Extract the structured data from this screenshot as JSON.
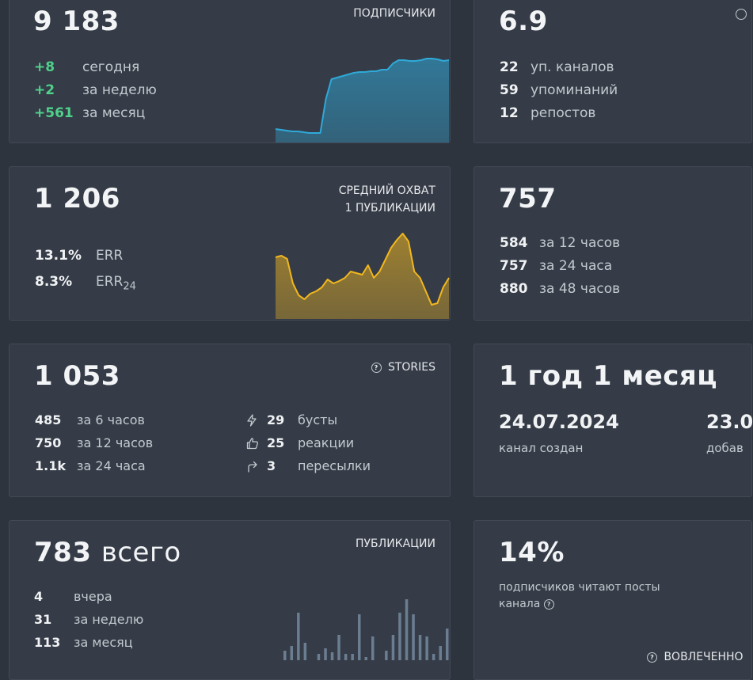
{
  "subscribers": {
    "value": "9 183",
    "caption": "ПОДПИСЧИКИ",
    "stats": [
      {
        "value": "+8",
        "label": "сегодня"
      },
      {
        "value": "+2",
        "label": "за неделю"
      },
      {
        "value": "+561",
        "label": "за месяц"
      }
    ],
    "color": "#2fa9d9"
  },
  "mentions": {
    "value": "6.9",
    "stats": [
      {
        "value": "22",
        "label": "уп. каналов"
      },
      {
        "value": "59",
        "label": "упоминаний"
      },
      {
        "value": "12",
        "label": "репостов"
      }
    ]
  },
  "reach": {
    "value": "1 206",
    "caption_line1": "СРЕДНИЙ ОХВАТ",
    "caption_line2": "1 ПУБЛИКАЦИИ",
    "err": {
      "value": "13.1%",
      "label": "ERR"
    },
    "err24": {
      "value": "8.3%",
      "label": "ERR",
      "sub": "24"
    },
    "color": "#f2b71e"
  },
  "reach_hours": {
    "value": "757",
    "stats": [
      {
        "value": "584",
        "label": "за 12 часов"
      },
      {
        "value": "757",
        "label": "за 24 часа"
      },
      {
        "value": "880",
        "label": "за 48 часов"
      }
    ]
  },
  "stories": {
    "value": "1 053",
    "caption": "STORIES",
    "stats": [
      {
        "value": "485",
        "label": "за 6 часов"
      },
      {
        "value": "750",
        "label": "за 12 часов"
      },
      {
        "value": "1.1k",
        "label": "за 24 часа"
      }
    ],
    "interactions": [
      {
        "icon": "lightning-icon",
        "value": "29",
        "label": "бусты"
      },
      {
        "icon": "thumbs-up-icon",
        "value": "25",
        "label": "реакции"
      },
      {
        "icon": "forward-arrow-icon",
        "value": "3",
        "label": "пересылки"
      }
    ]
  },
  "age": {
    "value": "1 год 1 месяц",
    "created_date": "24.07.2024",
    "created_label": "канал создан",
    "added_date": "23.0",
    "added_label": "добав"
  },
  "publications": {
    "value": "783",
    "value_suffix": "всего",
    "caption": "ПУБЛИКАЦИИ",
    "stats": [
      {
        "value": "4",
        "label": "вчера"
      },
      {
        "value": "31",
        "label": "за неделю"
      },
      {
        "value": "113",
        "label": "за месяц"
      }
    ],
    "color": "#6b7d91"
  },
  "engagement": {
    "value": "14%",
    "text_line1": "подписчиков читают посты",
    "text_line2": "канала",
    "footer": "ВОВЛЕЧЕННО"
  },
  "chart_data": [
    {
      "type": "area",
      "values": [
        17,
        16,
        15,
        14,
        14,
        13,
        12,
        12,
        12,
        55,
        80,
        82,
        84,
        86,
        88,
        89,
        89,
        90,
        90,
        92,
        92,
        100,
        104,
        104,
        103,
        103,
        104,
        106,
        106,
        105,
        103,
        104
      ],
      "ylim": [
        0,
        112
      ]
    },
    {
      "type": "area",
      "values": [
        78,
        80,
        76,
        45,
        30,
        25,
        32,
        35,
        40,
        50,
        45,
        48,
        52,
        60,
        58,
        56,
        68,
        52,
        60,
        75,
        90,
        100,
        108,
        98,
        60,
        52,
        35,
        18,
        20,
        40,
        52
      ],
      "ylim": [
        0,
        112
      ]
    },
    {
      "type": "bar",
      "values": [
        12,
        18,
        60,
        22,
        0,
        8,
        15,
        10,
        32,
        8,
        8,
        58,
        4,
        30,
        0,
        12,
        32,
        60,
        77,
        58,
        32,
        30,
        8,
        18,
        40
      ],
      "ylim": [
        0,
        80
      ]
    }
  ]
}
